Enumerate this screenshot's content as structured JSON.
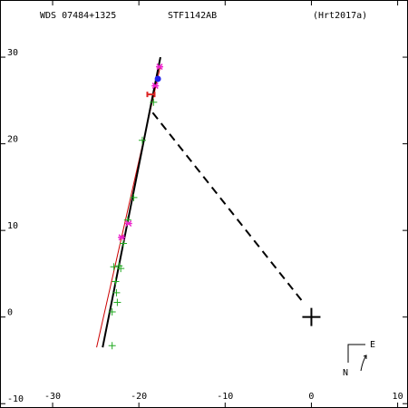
{
  "chart_data": {
    "type": "scatter",
    "header": [
      "WDS 07484+1325",
      "STF1142AB",
      "(Hrt2017a)"
    ],
    "xlim": [
      -36.1,
      11.2
    ],
    "ylim": [
      -10.5,
      36.6
    ],
    "xticks": [
      -30,
      -20,
      -10,
      0,
      10
    ],
    "yticks": [
      -10,
      0,
      10,
      20,
      30
    ],
    "series": [
      {
        "color": "#22aa22",
        "marker": "plus",
        "x": [
          -22.9,
          -22.3,
          -22.1,
          -22.7,
          -22.6,
          -22.5,
          -23.1,
          -23.1,
          -21.8,
          -21.3,
          -20.6,
          -19.6,
          -18.3
        ],
        "values": [
          5.8,
          5.9,
          5.6,
          4.1,
          2.8,
          1.7,
          0.6,
          -3.3,
          8.5,
          11.2,
          13.8,
          20.4,
          24.8
        ]
      },
      {
        "color": "#ee22cc",
        "marker": "cross",
        "x": [
          -22.0,
          -21.2,
          -18.1,
          -17.6
        ],
        "values": [
          9.2,
          10.8,
          26.7,
          28.9
        ]
      },
      {
        "color": "#2222ee",
        "marker": "dot",
        "x": [
          -17.8
        ],
        "values": [
          27.5
        ]
      },
      {
        "color": "#dd2222",
        "marker": "hbar",
        "x": [
          -18.6
        ],
        "values": [
          25.7
        ]
      }
    ],
    "lines": [
      {
        "color": "#cc0000",
        "width": 1,
        "dash": false,
        "x": [
          -24.9,
          -17.5
        ],
        "values": [
          -3.5,
          29.0
        ]
      },
      {
        "color": "#000000",
        "width": 2,
        "dash": false,
        "x": [
          -24.2,
          -17.5
        ],
        "values": [
          -3.5,
          30.0
        ]
      },
      {
        "color": "#000000",
        "width": 2,
        "dash": true,
        "x": [
          -18.4,
          -0.8
        ],
        "values": [
          23.6,
          1.5
        ]
      }
    ],
    "primary": {
      "x": 0,
      "y": 0
    },
    "compass": {
      "north": "N",
      "east": "E"
    }
  }
}
